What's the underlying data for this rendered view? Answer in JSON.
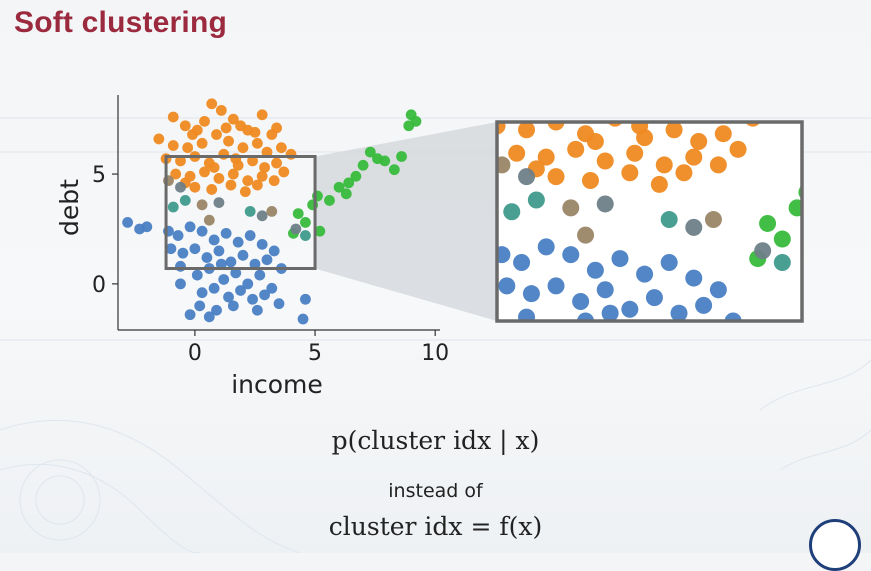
{
  "slide": {
    "title": "Soft clustering",
    "formula_main": "p(cluster idx | x)",
    "connector": "instead of",
    "formula_alt": "cluster idx = f(x)"
  },
  "colors": {
    "title": "#9c2a3f",
    "cluster_orange": "#ef8a22",
    "cluster_blue": "#4a7fc4",
    "cluster_green": "#38bb3c",
    "mixed_brown": "#9a8667",
    "mixed_gray": "#6f8088",
    "mixed_teal": "#3f9a8c",
    "box_stroke": "#6a6a6a"
  },
  "chart_data": [
    {
      "type": "scatter",
      "title": "",
      "xlabel": "income",
      "ylabel": "debt",
      "xticks": [
        0,
        5,
        10
      ],
      "yticks": [
        0,
        5
      ],
      "xlim": [
        -3.2,
        10.2
      ],
      "ylim": [
        -2.1,
        8.6
      ],
      "grid": false,
      "highlight_box": {
        "x": [
          -1.2,
          5.0
        ],
        "y": [
          0.7,
          5.8
        ]
      },
      "series": [
        {
          "color": "orange",
          "points": [
            [
              -0.9,
              7.6
            ],
            [
              -0.4,
              7.2
            ],
            [
              0.1,
              7.0
            ],
            [
              0.7,
              8.2
            ],
            [
              1.1,
              7.9
            ],
            [
              1.6,
              7.5
            ],
            [
              2.2,
              7.0
            ],
            [
              2.8,
              7.7
            ],
            [
              3.2,
              6.8
            ],
            [
              -1.5,
              6.6
            ],
            [
              -0.9,
              6.3
            ],
            [
              -0.3,
              6.2
            ],
            [
              0.3,
              6.4
            ],
            [
              0.9,
              6.8
            ],
            [
              1.4,
              6.5
            ],
            [
              2.0,
              6.2
            ],
            [
              2.6,
              6.4
            ],
            [
              3.0,
              6.0
            ],
            [
              3.6,
              6.2
            ],
            [
              4.0,
              5.9
            ],
            [
              -1.2,
              5.7
            ],
            [
              -0.6,
              5.6
            ],
            [
              0.0,
              5.8
            ],
            [
              0.6,
              5.5
            ],
            [
              1.2,
              5.9
            ],
            [
              1.8,
              5.4
            ],
            [
              2.4,
              5.6
            ],
            [
              2.9,
              5.3
            ],
            [
              3.4,
              5.5
            ],
            [
              -0.8,
              5.0
            ],
            [
              -0.2,
              4.9
            ],
            [
              0.4,
              5.1
            ],
            [
              1.0,
              4.8
            ],
            [
              1.6,
              5.0
            ],
            [
              2.2,
              4.7
            ],
            [
              2.8,
              4.9
            ],
            [
              3.3,
              4.7
            ],
            [
              0.0,
              4.4
            ],
            [
              0.7,
              4.3
            ],
            [
              1.5,
              4.5
            ],
            [
              2.1,
              4.2
            ],
            [
              -0.4,
              4.6
            ],
            [
              1.9,
              7.2
            ],
            [
              0.4,
              7.4
            ],
            [
              2.5,
              6.9
            ],
            [
              1.3,
              7.1
            ],
            [
              -0.1,
              6.8
            ],
            [
              3.4,
              7.1
            ],
            [
              0.8,
              5.3
            ],
            [
              1.7,
              5.7
            ],
            [
              2.6,
              4.5
            ],
            [
              3.7,
              5.1
            ]
          ]
        },
        {
          "color": "blue",
          "points": [
            [
              -2.8,
              2.8
            ],
            [
              -2.3,
              2.5
            ],
            [
              -2.0,
              2.6
            ],
            [
              -1.1,
              2.4
            ],
            [
              -0.7,
              2.2
            ],
            [
              -0.2,
              2.6
            ],
            [
              0.3,
              2.4
            ],
            [
              0.8,
              2.0
            ],
            [
              1.3,
              2.3
            ],
            [
              1.8,
              1.9
            ],
            [
              2.3,
              2.2
            ],
            [
              2.8,
              1.8
            ],
            [
              3.3,
              1.5
            ],
            [
              -1.0,
              1.6
            ],
            [
              -0.5,
              1.4
            ],
            [
              0.0,
              1.6
            ],
            [
              0.5,
              1.2
            ],
            [
              1.0,
              1.5
            ],
            [
              1.5,
              1.0
            ],
            [
              2.0,
              1.3
            ],
            [
              2.5,
              0.9
            ],
            [
              3.0,
              1.1
            ],
            [
              3.6,
              0.7
            ],
            [
              -0.6,
              0.8
            ],
            [
              0.1,
              0.4
            ],
            [
              0.6,
              0.7
            ],
            [
              1.2,
              0.2
            ],
            [
              1.7,
              0.5
            ],
            [
              2.2,
              0.0
            ],
            [
              2.7,
              0.4
            ],
            [
              3.2,
              -0.2
            ],
            [
              0.3,
              -0.4
            ],
            [
              0.8,
              -0.2
            ],
            [
              1.4,
              -0.6
            ],
            [
              1.9,
              -0.3
            ],
            [
              2.4,
              -0.7
            ],
            [
              2.9,
              -0.5
            ],
            [
              3.5,
              -0.9
            ],
            [
              0.2,
              -1.0
            ],
            [
              0.9,
              -1.2
            ],
            [
              1.6,
              -1.0
            ],
            [
              -0.2,
              -1.4
            ],
            [
              0.6,
              -1.5
            ],
            [
              4.6,
              -0.7
            ],
            [
              4.5,
              -1.6
            ],
            [
              -0.6,
              0.0
            ],
            [
              1.1,
              0.9
            ],
            [
              2.6,
              -1.2
            ]
          ]
        },
        {
          "color": "green",
          "points": [
            [
              4.3,
              3.2
            ],
            [
              4.6,
              2.8
            ],
            [
              4.9,
              3.6
            ],
            [
              5.1,
              4.0
            ],
            [
              5.6,
              3.8
            ],
            [
              6.0,
              4.4
            ],
            [
              6.3,
              4.1
            ],
            [
              6.7,
              4.9
            ],
            [
              7.0,
              5.4
            ],
            [
              7.3,
              6.0
            ],
            [
              7.9,
              5.6
            ],
            [
              8.3,
              5.2
            ],
            [
              8.6,
              5.8
            ],
            [
              8.9,
              7.2
            ],
            [
              9.2,
              7.4
            ],
            [
              9.0,
              7.7
            ],
            [
              5.2,
              2.4
            ],
            [
              4.1,
              2.3
            ],
            [
              6.4,
              4.6
            ],
            [
              7.6,
              5.7
            ]
          ]
        },
        {
          "color": "mixed",
          "points": [
            [
              -1.1,
              4.7
            ],
            [
              -0.6,
              4.4
            ],
            [
              -0.4,
              3.8
            ],
            [
              0.3,
              3.6
            ],
            [
              1.0,
              3.7
            ],
            [
              2.3,
              3.3
            ],
            [
              3.2,
              3.3
            ],
            [
              2.8,
              3.1
            ],
            [
              -0.9,
              3.5
            ],
            [
              0.6,
              2.9
            ],
            [
              4.2,
              2.5
            ],
            [
              4.6,
              2.2
            ]
          ]
        }
      ]
    },
    {
      "type": "scatter",
      "title": "",
      "xlabel": "",
      "ylabel": "",
      "xlim": [
        -1.2,
        5.0
      ],
      "ylim": [
        0.7,
        5.8
      ],
      "note": "zoomed inset of highlight_box"
    }
  ]
}
